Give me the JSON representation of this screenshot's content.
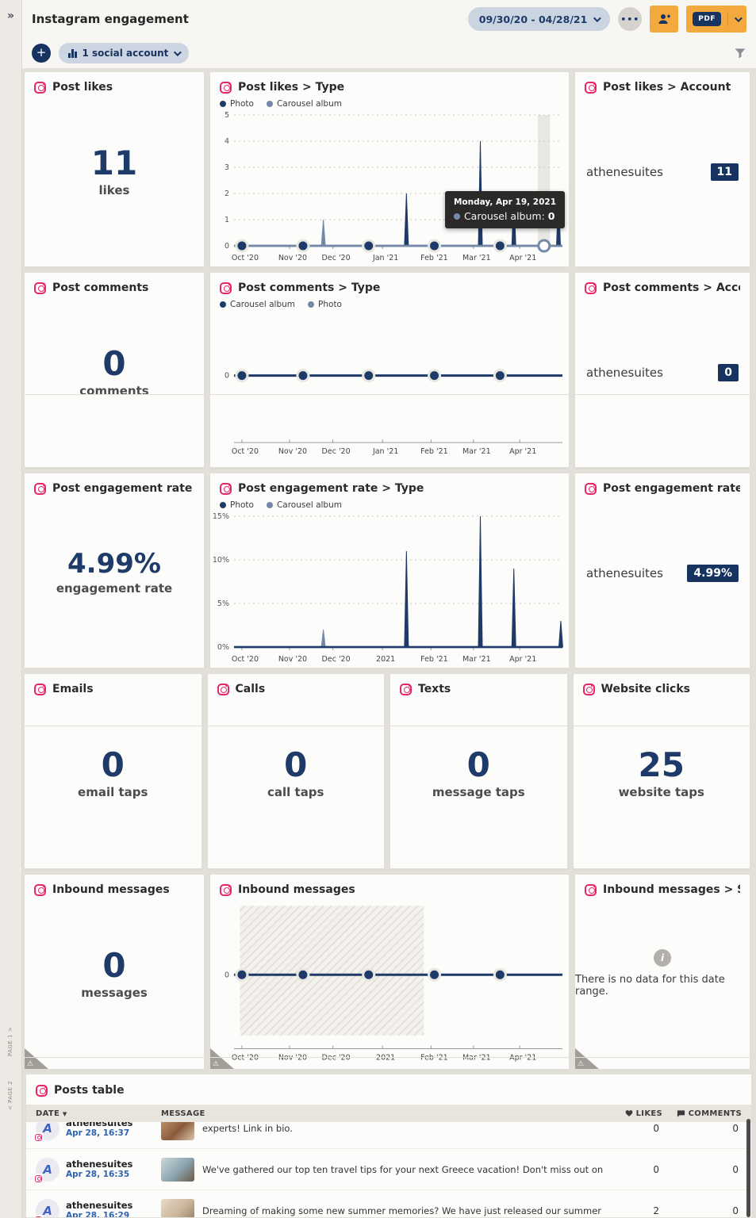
{
  "app": {
    "collapse_glyph": "»"
  },
  "header": {
    "title": "Instagram engagement",
    "date_range": "09/30/20 - 04/28/21",
    "more_glyph": "•••",
    "pdf_label": "PDF"
  },
  "toolbar": {
    "add_glyph": "+",
    "account_selector": "1 social account"
  },
  "page_markers": {
    "page1": "PAGE 1 >",
    "page2": "< PAGE 2"
  },
  "colors": {
    "accent_orange": "#f3a93e",
    "navy": "#1e3a68",
    "slate": "#7389a7",
    "instagram_pink": "#e7266a",
    "badge_navy": "#17335f"
  },
  "metric_cards": {
    "post_likes": {
      "title": "Post likes",
      "value": "11",
      "label": "likes"
    },
    "post_comments": {
      "title": "Post comments",
      "value": "0",
      "label": "comments"
    },
    "post_engagement_rate": {
      "title": "Post engagement rate",
      "value": "4.99%",
      "label": "engagement rate"
    },
    "emails": {
      "title": "Emails",
      "value": "0",
      "label": "email taps"
    },
    "calls": {
      "title": "Calls",
      "value": "0",
      "label": "call taps"
    },
    "texts": {
      "title": "Texts",
      "value": "0",
      "label": "message taps"
    },
    "website_clicks": {
      "title": "Website clicks",
      "value": "25",
      "label": "website taps"
    },
    "inbound_messages": {
      "title": "Inbound messages",
      "value": "0",
      "label": "messages"
    }
  },
  "account_cards": {
    "post_likes_account": {
      "title": "Post likes > Account",
      "account": "athenesuites",
      "value": "11"
    },
    "post_comments_account": {
      "title": "Post comments > Account",
      "account": "athenesuites",
      "value": "0"
    },
    "post_engagement_account": {
      "title": "Post engagement rate > Acc...",
      "account": "athenesuites",
      "value": "4.99%"
    }
  },
  "chart_cards": {
    "post_likes_type": {
      "title": "Post likes > Type"
    },
    "post_comments_type": {
      "title": "Post comments > Type"
    },
    "post_engagement_type": {
      "title": "Post engagement rate > Type"
    },
    "inbound_messages_chart": {
      "title": "Inbound messages"
    }
  },
  "sentiment_card": {
    "title": "Inbound messages > Senti...",
    "info_glyph": "i",
    "empty_text": "There is no data for this date range."
  },
  "tooltip": {
    "date": "Monday, Apr 19, 2021",
    "series": "Carousel album",
    "separator": ": ",
    "value": "0"
  },
  "chart_data": {
    "post_likes_type": {
      "type": "line",
      "title": "Post likes > Type",
      "ylim": [
        0,
        5
      ],
      "yticks": [
        {
          "v": 0,
          "l": "0"
        },
        {
          "v": 1,
          "l": "1"
        },
        {
          "v": 2,
          "l": "2"
        },
        {
          "v": 3,
          "l": "3"
        },
        {
          "v": 4,
          "l": "4"
        },
        {
          "v": 5,
          "l": "5"
        }
      ],
      "x_ticks": [
        {
          "f": 0.024,
          "l": "Oct '20"
        },
        {
          "f": 0.169,
          "l": "Nov '20"
        },
        {
          "f": 0.301,
          "l": "Dec '20"
        },
        {
          "f": 0.452,
          "l": "Jan '21"
        },
        {
          "f": 0.6,
          "l": "Feb '21"
        },
        {
          "f": 0.729,
          "l": "Mar '21"
        },
        {
          "f": 0.87,
          "l": "Apr '21"
        }
      ],
      "legend": [
        {
          "label": "Photo",
          "color": "#1e3a68"
        },
        {
          "label": "Carousel album",
          "color": "#7389a7"
        }
      ],
      "series": [
        {
          "name": "Photo",
          "color": "#1e3a68",
          "baseline": 0,
          "spikes": [
            [
              0.525,
              2
            ],
            [
              0.75,
              4
            ],
            [
              0.852,
              2
            ],
            [
              0.988,
              2
            ]
          ]
        },
        {
          "name": "Carousel album",
          "color": "#7389a7",
          "baseline": 0,
          "spikes": [
            [
              0.272,
              1
            ]
          ]
        }
      ],
      "zero_markers": [
        0.024,
        0.21,
        0.41,
        0.61,
        0.81
      ],
      "open_marker": 0.944,
      "band": [
        0.925,
        0.962
      ],
      "grid": "dashed"
    },
    "post_comments_type": {
      "type": "flat",
      "title": "Post comments > Type",
      "zero_label": "0",
      "line_color": "#1e3a68",
      "legend": [
        {
          "label": "Carousel album",
          "color": "#1e3a68"
        },
        {
          "label": "Photo",
          "color": "#7389a7"
        }
      ],
      "x_ticks": [
        {
          "f": 0.024,
          "l": "Oct '20"
        },
        {
          "f": 0.169,
          "l": "Nov '20"
        },
        {
          "f": 0.301,
          "l": "Dec '20"
        },
        {
          "f": 0.452,
          "l": "Jan '21"
        },
        {
          "f": 0.6,
          "l": "Feb '21"
        },
        {
          "f": 0.729,
          "l": "Mar '21"
        },
        {
          "f": 0.87,
          "l": "Apr '21"
        }
      ],
      "zero_markers": [
        0.024,
        0.21,
        0.41,
        0.61,
        0.81
      ],
      "zero_frac": 0.42,
      "axis_frac": 0.845,
      "values_all_zero": true
    },
    "post_engagement_type": {
      "type": "line",
      "title": "Post engagement rate > Type",
      "ylim": [
        0,
        15
      ],
      "yticks": [
        {
          "v": 0,
          "l": "0%"
        },
        {
          "v": 5,
          "l": "5%"
        },
        {
          "v": 10,
          "l": "10%"
        },
        {
          "v": 15,
          "l": "15%"
        }
      ],
      "x_ticks": [
        {
          "f": 0.024,
          "l": "Oct '20"
        },
        {
          "f": 0.169,
          "l": "Nov '20"
        },
        {
          "f": 0.301,
          "l": "Dec '20"
        },
        {
          "f": 0.452,
          "l": "2021"
        },
        {
          "f": 0.6,
          "l": "Feb '21"
        },
        {
          "f": 0.729,
          "l": "Mar '21"
        },
        {
          "f": 0.87,
          "l": "Apr '21"
        }
      ],
      "legend": [
        {
          "label": "Photo",
          "color": "#1e3a68"
        },
        {
          "label": "Carousel album",
          "color": "#7389a7"
        }
      ],
      "series": [
        {
          "name": "Carousel album",
          "color": "#7389a7",
          "baseline": 0,
          "spikes": [
            [
              0.272,
              2
            ]
          ]
        },
        {
          "name": "Photo",
          "color": "#1e3a68",
          "baseline": 0,
          "spikes": [
            [
              0.525,
              11
            ],
            [
              0.75,
              15
            ],
            [
              0.852,
              9
            ],
            [
              0.995,
              3
            ]
          ]
        }
      ],
      "zero_markers": [],
      "grid": "dashed"
    },
    "inbound_messages": {
      "type": "flat",
      "title": "Inbound messages",
      "zero_label": "0",
      "line_color": "#1e3a68",
      "x_ticks": [
        {
          "f": 0.024,
          "l": "Oct '20"
        },
        {
          "f": 0.169,
          "l": "Nov '20"
        },
        {
          "f": 0.301,
          "l": "Dec '20"
        },
        {
          "f": 0.452,
          "l": "2021"
        },
        {
          "f": 0.6,
          "l": "Feb '21"
        },
        {
          "f": 0.729,
          "l": "Mar '21"
        },
        {
          "f": 0.87,
          "l": "Apr '21"
        }
      ],
      "zero_markers": [
        0.024,
        0.21,
        0.41,
        0.61,
        0.81
      ],
      "zero_frac": 0.44,
      "axis_frac": 0.88,
      "hatch": {
        "x": [
          0.018,
          0.578
        ],
        "y": [
          0.03,
          0.8
        ]
      },
      "values_all_zero": true
    }
  },
  "posts_table": {
    "title": "Posts table",
    "columns": {
      "date": "DATE",
      "message": "MESSAGE",
      "likes": "LIKES",
      "comments": "COMMENTS"
    },
    "rows": [
      {
        "account": "athenesuites",
        "initial": "A",
        "date": "Apr 28, 16:37",
        "message": "experts! Link in bio.",
        "likes": "0",
        "comments": "0",
        "thumb_colors": [
          "#c49a6c",
          "#8a5a3b",
          "#d9c9ae"
        ]
      },
      {
        "account": "athenesuites",
        "initial": "A",
        "date": "Apr 28, 16:35",
        "message": "We've gathered our top ten travel tips for your next Greece vacation! Don't miss out on these incredible insights! #travelgreece Link in bio.",
        "likes": "0",
        "comments": "0",
        "thumb_colors": [
          "#cdd8dc",
          "#8aa3ad",
          "#6b5b45"
        ]
      },
      {
        "account": "athenesuites",
        "initial": "A",
        "date": "Apr 28, 16:29",
        "message": "Dreaming of making some new summer memories? We have just released our summer vacation packages 🔥",
        "likes": "2",
        "comments": "0",
        "thumb_colors": [
          "#e8d9c8",
          "#cbb49a",
          "#8d7b6a"
        ]
      }
    ]
  }
}
